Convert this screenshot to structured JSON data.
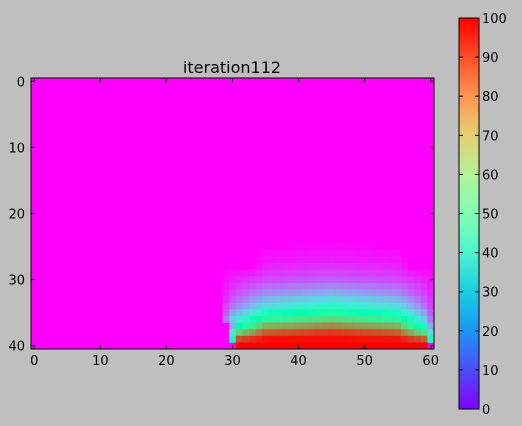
{
  "chart_data": {
    "type": "heatmap",
    "title": "iteration112",
    "xlabel": "",
    "ylabel": "",
    "colormap": "rainbow",
    "grid": false,
    "rows": 41,
    "cols": 61,
    "xlim": [
      0,
      61
    ],
    "ylim": [
      41,
      0
    ],
    "x_ticks": [
      0,
      10,
      20,
      30,
      40,
      50,
      60
    ],
    "y_ticks": [
      0,
      10,
      20,
      30,
      40
    ],
    "colorbar": {
      "range": [
        0,
        100
      ],
      "ticks": [
        0,
        10,
        20,
        30,
        40,
        50,
        60,
        70,
        80,
        90,
        100
      ]
    },
    "background_value": 0,
    "hot_boundary": {
      "row": 40,
      "col_start": 31,
      "col_end": 59,
      "value": 100
    },
    "field_description_rows": [
      {
        "row": 39,
        "values_by_col": {
          "31": 90,
          "35": 98,
          "45": 99,
          "55": 97,
          "59": 88
        }
      },
      {
        "row": 38,
        "values_by_col": {
          "31": 70,
          "35": 88,
          "45": 93,
          "55": 88,
          "59": 65
        }
      },
      {
        "row": 37,
        "values_by_col": {
          "31": 50,
          "35": 75,
          "45": 82,
          "55": 75,
          "59": 45
        }
      },
      {
        "row": 36,
        "values_by_col": {
          "30": 30,
          "35": 58,
          "45": 68,
          "55": 58,
          "59": 30
        }
      },
      {
        "row": 35,
        "values_by_col": {
          "30": 22,
          "35": 45,
          "45": 55,
          "55": 45,
          "59": 22
        }
      },
      {
        "row": 34,
        "values_by_col": {
          "30": 15,
          "35": 33,
          "45": 42,
          "55": 33,
          "59": 15
        }
      },
      {
        "row": 32,
        "values_by_col": {
          "30": 8,
          "35": 18,
          "45": 24,
          "55": 18,
          "59": 8
        }
      },
      {
        "row": 30,
        "values_by_col": {
          "30": 4,
          "35": 9,
          "45": 12,
          "55": 9,
          "59": 4
        }
      },
      {
        "row": 28,
        "values_by_col": {
          "35": 4,
          "45": 6,
          "55": 4
        }
      }
    ]
  }
}
